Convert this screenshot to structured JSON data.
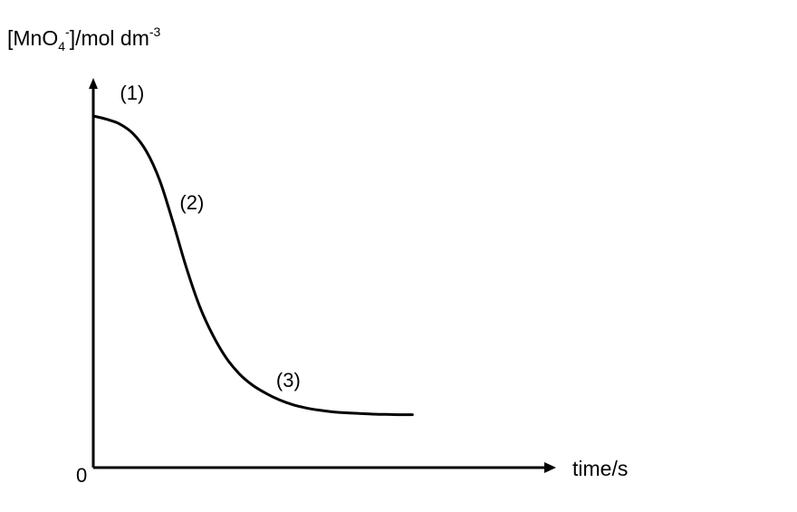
{
  "chart_data": {
    "type": "line",
    "xlabel": "time/s",
    "ylabel": {
      "prefix": "[MnO",
      "subscript": "4",
      "superscript": "-",
      "suffix": "]/mol dm",
      "unit_power": "-3"
    },
    "origin_label": "0",
    "xlim": [
      0,
      100
    ],
    "ylim": [
      0,
      100
    ],
    "grid": false,
    "series": [
      {
        "x": [
          0,
          4,
          8,
          12,
          16,
          20,
          24,
          28,
          32,
          36,
          40,
          44,
          48,
          52,
          56,
          60,
          64,
          68,
          72,
          76,
          80,
          84,
          88,
          92,
          96
        ],
        "y": [
          100,
          99,
          97.5,
          94.5,
          89,
          80,
          67,
          53,
          41,
          32,
          25,
          20,
          16.5,
          14,
          12,
          10.5,
          9.5,
          8.8,
          8.3,
          8,
          7.8,
          7.6,
          7.5,
          7.4,
          7.4
        ]
      }
    ],
    "annotations": [
      {
        "text": "(1)",
        "x": 8,
        "y": 105
      },
      {
        "text": "(2)",
        "x": 26,
        "y": 71
      },
      {
        "text": "(3)",
        "x": 55,
        "y": 16
      }
    ],
    "colors": {
      "line": "#000000",
      "axis": "#000000",
      "background": "#ffffff"
    }
  }
}
